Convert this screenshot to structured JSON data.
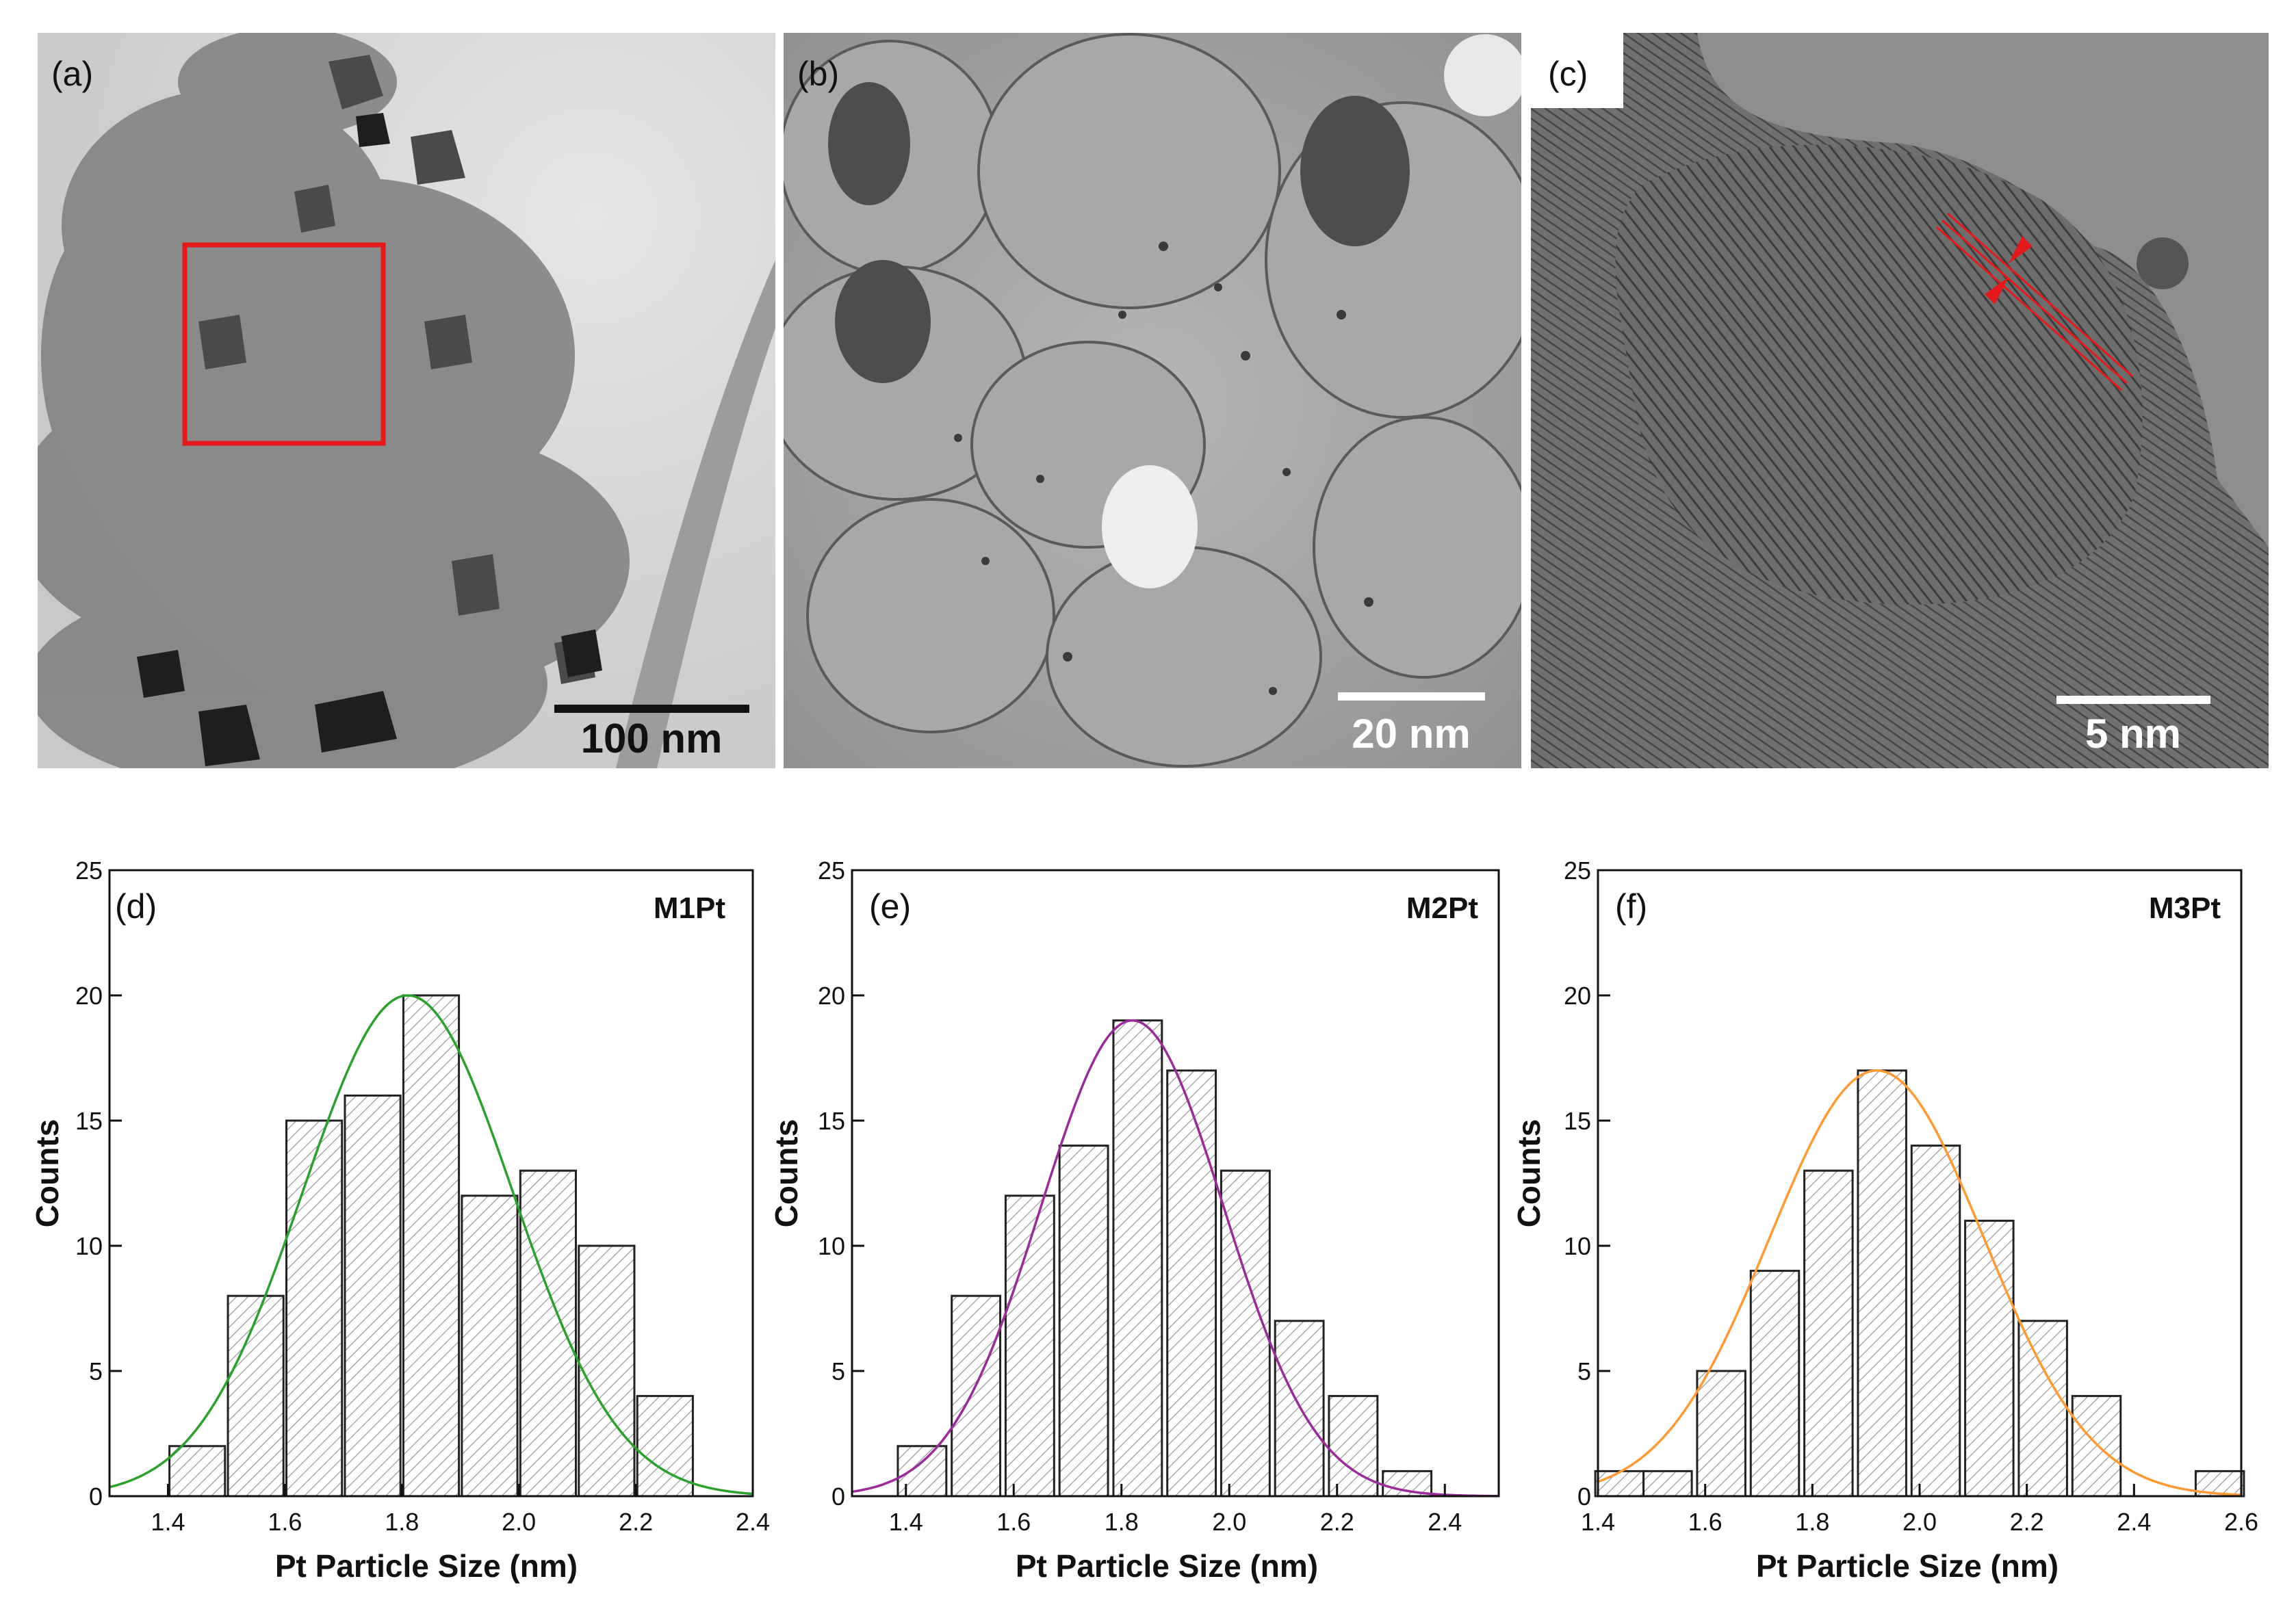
{
  "images": [
    {
      "panel_label": "(a)",
      "scale_bar": "100 nm"
    },
    {
      "panel_label": "(b)",
      "scale_bar": "20 nm"
    },
    {
      "panel_label": "(c)",
      "scale_bar": "5 nm"
    }
  ],
  "chart_data": [
    {
      "type": "bar",
      "panel_label": "(d)",
      "sample": "M1Pt",
      "xlabel": "Pt Particle Size (nm)",
      "ylabel": "Counts",
      "xlim": [
        1.3,
        2.4
      ],
      "ylim": [
        0,
        25
      ],
      "xticks": [
        "1.4",
        "1.6",
        "1.8",
        "2.0",
        "2.2",
        "2.4"
      ],
      "yticks": [
        "0",
        "5",
        "10",
        "15",
        "20",
        "25"
      ],
      "bin_width": 0.095,
      "x": [
        1.45,
        1.55,
        1.65,
        1.75,
        1.85,
        1.95,
        2.05,
        2.15,
        2.25
      ],
      "values": [
        2,
        8,
        15,
        16,
        20,
        12,
        13,
        10,
        4
      ],
      "fit": {
        "type": "gaussian",
        "center": 1.81,
        "height": 20,
        "sigma": 0.18,
        "color": "#2ca02c"
      },
      "bar_fill": "hatched"
    },
    {
      "type": "bar",
      "panel_label": "(e)",
      "sample": "M2Pt",
      "xlabel": "Pt Particle Size (nm)",
      "ylabel": "Counts",
      "xlim": [
        1.3,
        2.5
      ],
      "ylim": [
        0,
        25
      ],
      "xticks": [
        "1.4",
        "1.6",
        "1.8",
        "2.0",
        "2.2",
        "2.4"
      ],
      "yticks": [
        "0",
        "5",
        "10",
        "15",
        "20",
        "25"
      ],
      "bin_width": 0.09,
      "x": [
        1.43,
        1.53,
        1.63,
        1.73,
        1.83,
        1.93,
        2.03,
        2.13,
        2.23,
        2.33
      ],
      "values": [
        2,
        8,
        12,
        14,
        19,
        17,
        13,
        7,
        4,
        1
      ],
      "fit": {
        "type": "gaussian",
        "center": 1.82,
        "height": 19,
        "sigma": 0.17,
        "color": "#9b2a9b"
      },
      "bar_fill": "hatched"
    },
    {
      "type": "bar",
      "panel_label": "(f)",
      "sample": "M3Pt",
      "xlabel": "Pt Particle Size (nm)",
      "ylabel": "Counts",
      "xlim": [
        1.4,
        2.6
      ],
      "ylim": [
        0,
        25
      ],
      "xticks": [
        "1.4",
        "1.6",
        "1.8",
        "2.0",
        "2.2",
        "2.4",
        "2.6"
      ],
      "yticks": [
        "0",
        "5",
        "10",
        "15",
        "20",
        "25"
      ],
      "bin_width": 0.09,
      "x": [
        1.44,
        1.53,
        1.63,
        1.73,
        1.83,
        1.93,
        2.03,
        2.13,
        2.23,
        2.33,
        2.56
      ],
      "values": [
        1,
        1,
        5,
        9,
        13,
        17,
        14,
        11,
        7,
        4,
        1
      ],
      "fit": {
        "type": "gaussian",
        "center": 1.92,
        "height": 17,
        "sigma": 0.2,
        "color": "#ff9933"
      },
      "bar_fill": "hatched"
    }
  ]
}
